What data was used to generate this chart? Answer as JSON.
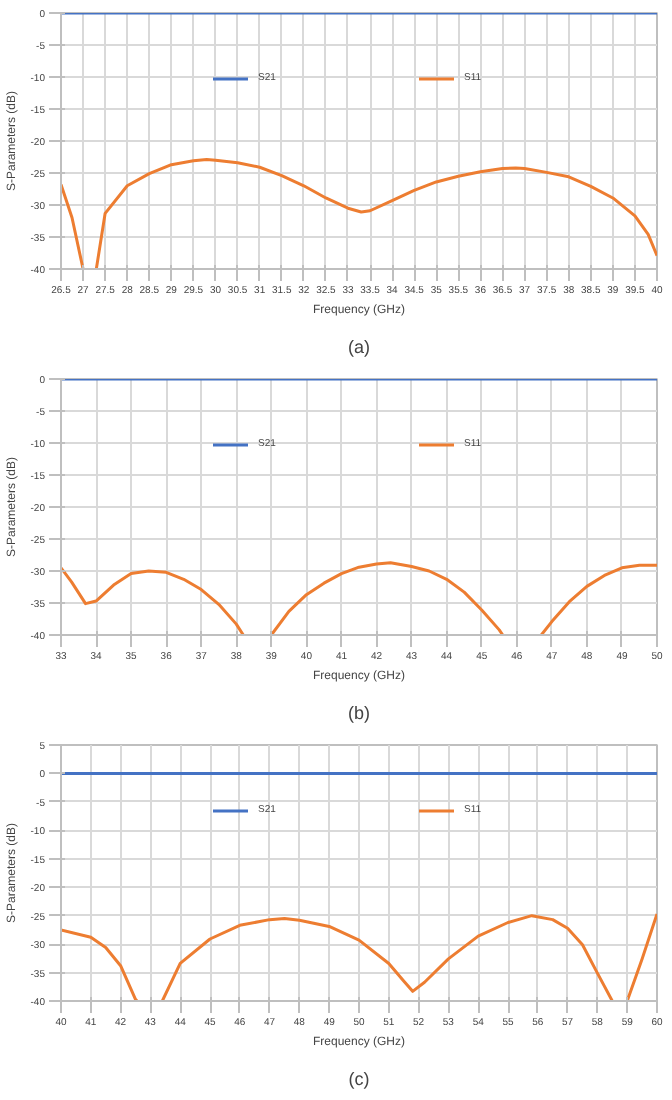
{
  "chart_data": [
    {
      "type": "line",
      "xlabel": "Frequency (GHz)",
      "ylabel": "S-Parameters (dB)",
      "annotations": [
        "(a)"
      ],
      "xlim": [
        26.5,
        40
      ],
      "ylim": [
        -40,
        0
      ],
      "xticks": [
        26.5,
        27,
        27.5,
        28,
        28.5,
        29,
        29.5,
        30,
        30.5,
        31,
        31.5,
        32,
        32.5,
        33,
        33.5,
        34,
        34.5,
        35,
        35.5,
        36,
        36.5,
        37,
        37.5,
        38,
        38.5,
        39,
        39.5,
        40
      ],
      "yticks": [
        -40,
        -35,
        -30,
        -25,
        -20,
        -15,
        -10,
        -5,
        0
      ],
      "grid": true,
      "legend": "top",
      "series": [
        {
          "name": "S21",
          "color": "#4472c4",
          "x": [
            26.5,
            33,
            40
          ],
          "values": [
            0,
            0,
            0
          ]
        },
        {
          "name": "S11",
          "color": "#ed7d31",
          "x": [
            26.5,
            26.75,
            27.0,
            27.1,
            27.3,
            27.5,
            28,
            28.5,
            29,
            29.5,
            29.8,
            30,
            30.5,
            31,
            31.5,
            32,
            32.5,
            33,
            33.3,
            33.5,
            34,
            34.5,
            35,
            35.5,
            36,
            36.5,
            36.8,
            37,
            37.5,
            38,
            38.5,
            39,
            39.5,
            39.8,
            40
          ],
          "values": [
            -26.8,
            -32,
            -40,
            null,
            -40,
            -31.3,
            -27,
            -25.1,
            -23.7,
            -23.1,
            -22.9,
            -23,
            -23.4,
            -24.1,
            -25.4,
            -27,
            -28.9,
            -30.5,
            -31.1,
            -30.9,
            -29.3,
            -27.7,
            -26.4,
            -25.5,
            -24.8,
            -24.3,
            -24.2,
            -24.3,
            -24.9,
            -25.6,
            -27.1,
            -28.9,
            -31.7,
            -34.6,
            -37.9
          ]
        }
      ]
    },
    {
      "type": "line",
      "xlabel": "Frequency (GHz)",
      "ylabel": "S-Parameters (dB)",
      "annotations": [
        "(b)"
      ],
      "xlim": [
        33,
        50
      ],
      "ylim": [
        -40,
        0
      ],
      "xticks": [
        33,
        34,
        35,
        36,
        37,
        38,
        39,
        40,
        41,
        42,
        43,
        44,
        45,
        46,
        47,
        48,
        49,
        50
      ],
      "yticks": [
        -40,
        -35,
        -30,
        -25,
        -20,
        -15,
        -10,
        -5,
        0
      ],
      "grid": true,
      "legend": "top",
      "series": [
        {
          "name": "S21",
          "color": "#4472c4",
          "x": [
            33,
            41,
            50
          ],
          "values": [
            0,
            0,
            0
          ]
        },
        {
          "name": "S11",
          "color": "#ed7d31",
          "x": [
            33,
            33.3,
            33.7,
            34,
            34.5,
            35,
            35.5,
            36,
            36.5,
            37,
            37.5,
            38,
            38.2,
            38.6,
            39.0,
            39.5,
            40,
            40.5,
            41,
            41.5,
            42,
            42.4,
            43,
            43.5,
            44,
            44.5,
            45,
            45.5,
            45.6,
            46.2,
            46.7,
            47,
            47.5,
            48,
            48.5,
            49,
            49.5,
            50
          ],
          "values": [
            -29.5,
            -31.7,
            -35.1,
            -34.7,
            -32.2,
            -30.4,
            -30,
            -30.2,
            -31.3,
            -32.9,
            -35.2,
            -38.3,
            -40,
            null,
            -40,
            -36.3,
            -33.7,
            -31.9,
            -30.4,
            -29.4,
            -28.9,
            -28.7,
            -29.3,
            -30,
            -31.3,
            -33.3,
            -36.1,
            -39.2,
            -40,
            null,
            -40,
            -37.9,
            -34.8,
            -32.4,
            -30.7,
            -29.5,
            -29.1,
            -29.1
          ]
        }
      ]
    },
    {
      "type": "line",
      "xlabel": "Frequency (GHz)",
      "ylabel": "S-Parameters (dB)",
      "annotations": [
        "(c)"
      ],
      "xlim": [
        40,
        60
      ],
      "ylim": [
        -40,
        5
      ],
      "xticks": [
        40,
        41,
        42,
        43,
        44,
        45,
        46,
        47,
        48,
        49,
        50,
        51,
        52,
        53,
        54,
        55,
        56,
        57,
        58,
        59,
        60
      ],
      "yticks": [
        -40,
        -35,
        -30,
        -25,
        -20,
        -15,
        -10,
        -5,
        0,
        5
      ],
      "grid": true,
      "legend": "top",
      "series": [
        {
          "name": "S21",
          "color": "#4472c4",
          "x": [
            40,
            50,
            60
          ],
          "values": [
            0,
            0,
            0
          ]
        },
        {
          "name": "S11",
          "color": "#ed7d31",
          "x": [
            40,
            41,
            41.5,
            42,
            42.5,
            42.55,
            43,
            43.4,
            44,
            45,
            46,
            47,
            47.5,
            48,
            49,
            50,
            51,
            51.5,
            51.8,
            52.2,
            53,
            54,
            55,
            55.8,
            56.5,
            57,
            57.5,
            58,
            58.5,
            58.8,
            59.0,
            59.5,
            60
          ],
          "values": [
            -27.5,
            -28.8,
            -30.6,
            -33.8,
            -39.7,
            -40,
            null,
            -40,
            -33.4,
            -29.1,
            -26.7,
            -25.7,
            -25.5,
            -25.8,
            -26.9,
            -29.3,
            -33.4,
            -36.5,
            -38.3,
            -36.7,
            -32.6,
            -28.6,
            -26.2,
            -25,
            -25.7,
            -27.2,
            -30.1,
            -35.1,
            -40,
            null,
            -40,
            -32.6,
            -24.7
          ]
        }
      ]
    }
  ]
}
